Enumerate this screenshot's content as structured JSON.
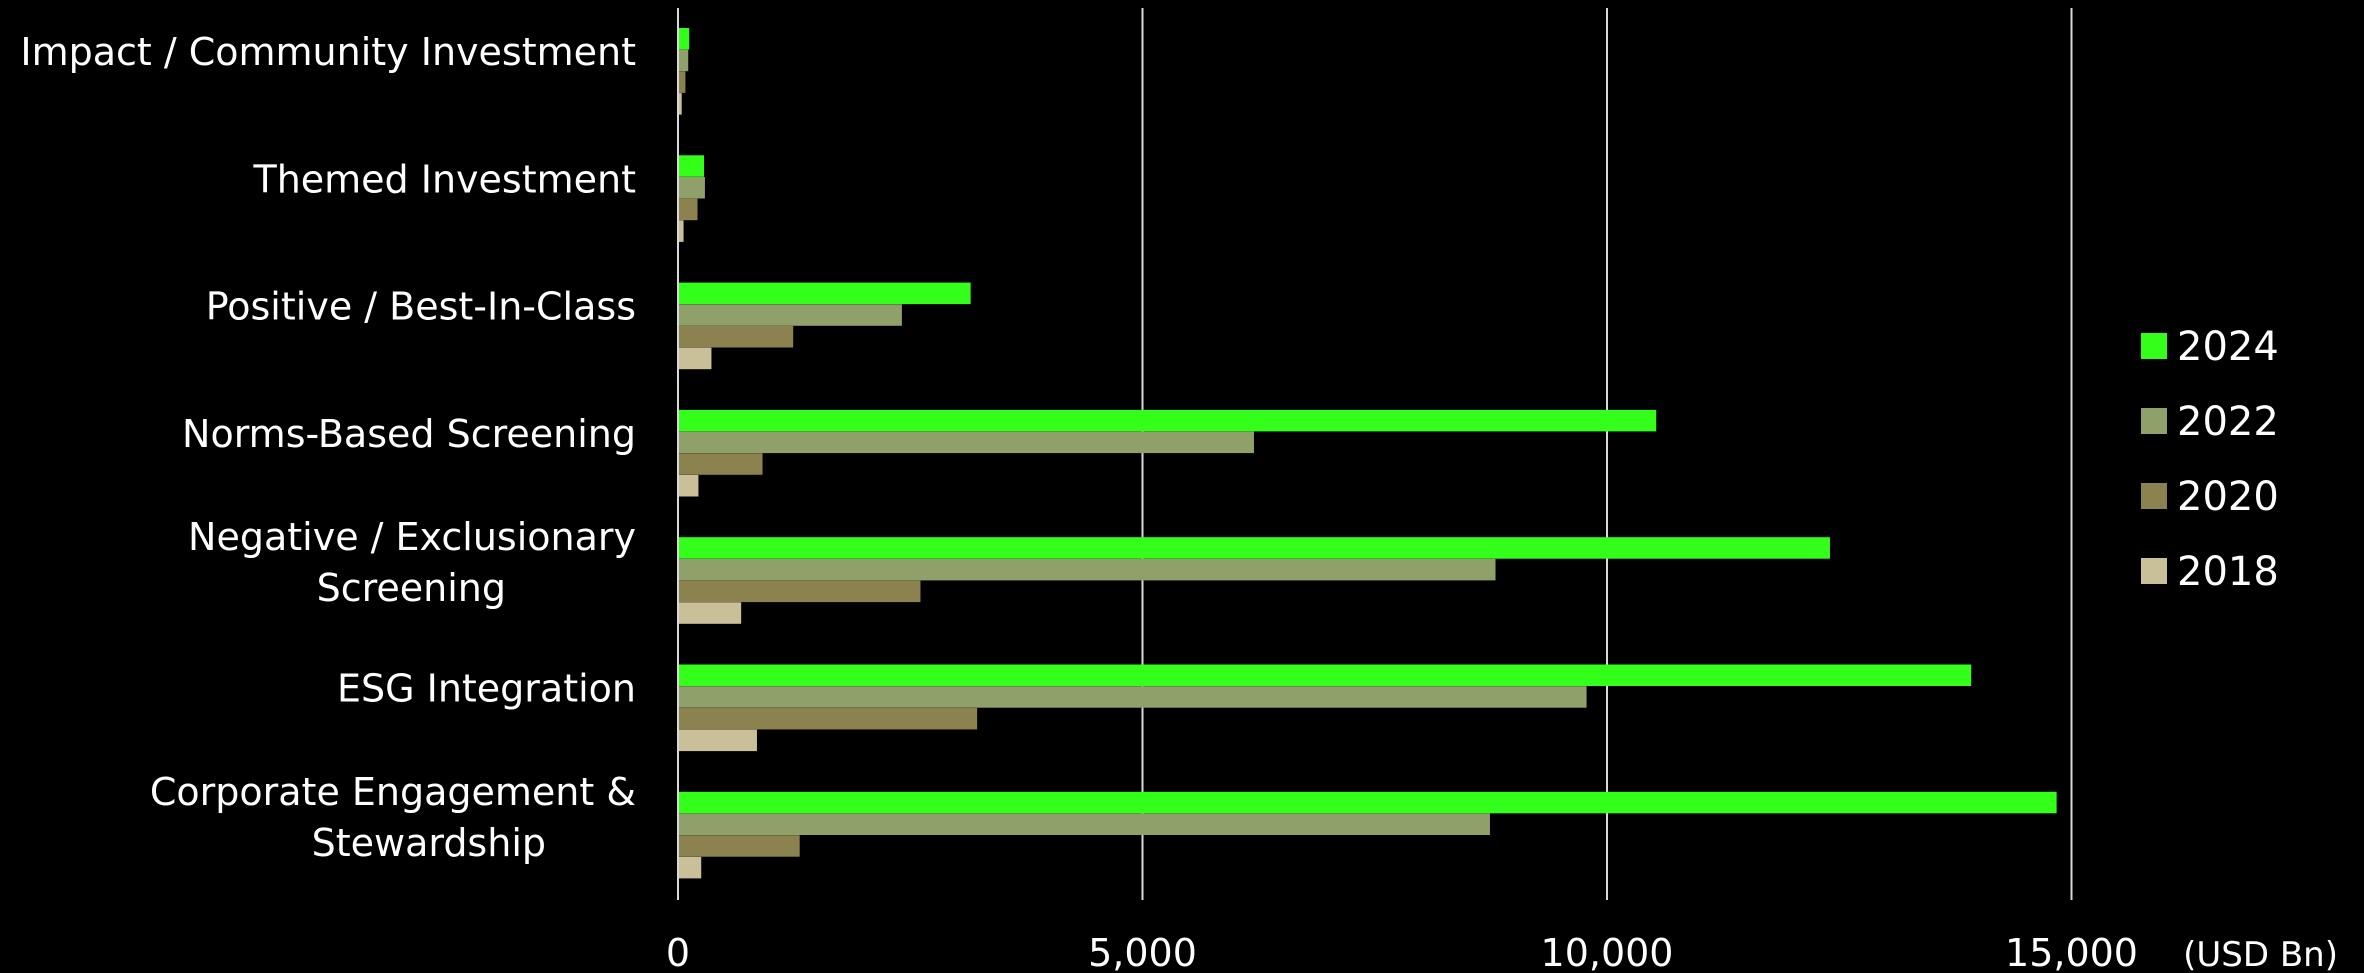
{
  "chart_data": {
    "type": "bar",
    "orientation": "horizontal",
    "categories": [
      "Impact / Community Investment",
      "Themed Investment",
      "Positive / Best-In-Class",
      "Norms-Based Screening",
      "Negative / Exclusionary Screening",
      "ESG Integration",
      "Corporate Engagement & Stewardship"
    ],
    "series": [
      {
        "name": "2024",
        "color": "#33ff1a",
        "values": [
          120,
          280,
          3150,
          10530,
          12400,
          13920,
          14840
        ]
      },
      {
        "name": "2022",
        "color": "#8fa06a",
        "values": [
          110,
          290,
          2410,
          6200,
          8800,
          9780,
          8740
        ]
      },
      {
        "name": "2020",
        "color": "#8b8250",
        "values": [
          80,
          210,
          1240,
          910,
          2610,
          3220,
          1310
        ]
      },
      {
        "name": "2018",
        "color": "#c9c09a",
        "values": [
          40,
          60,
          360,
          220,
          680,
          850,
          250
        ]
      }
    ],
    "xlim": [
      0,
      17500
    ],
    "xticks": [
      {
        "value": 0,
        "label": "0"
      },
      {
        "value": 5000,
        "label": "5,000"
      },
      {
        "value": 10000,
        "label": "10,000"
      },
      {
        "value": 15000,
        "label": "15,000"
      }
    ],
    "unit_label": "(USD Bn)",
    "grid": true,
    "legend_position": "right"
  }
}
